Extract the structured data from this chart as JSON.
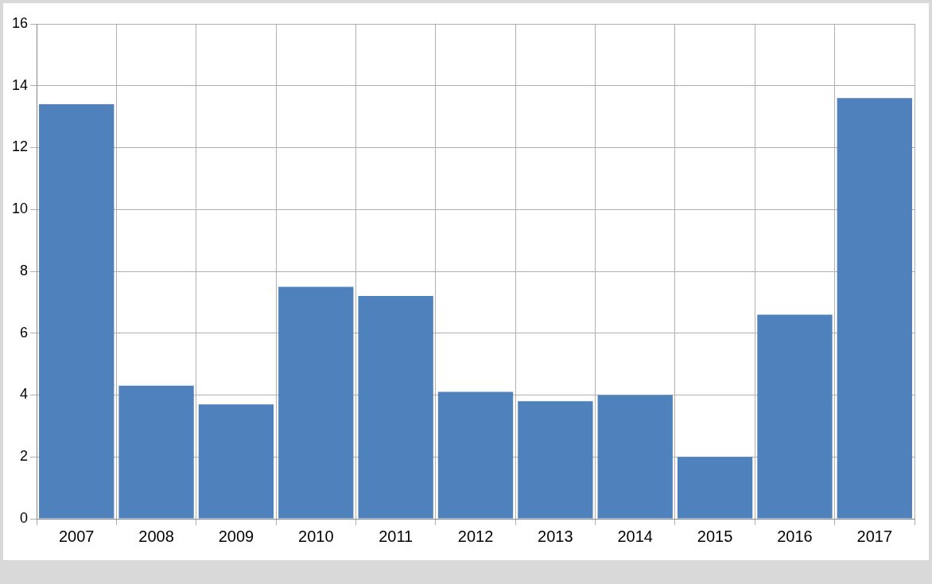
{
  "chart_data": {
    "type": "bar",
    "categories": [
      "2007",
      "2008",
      "2009",
      "2010",
      "2011",
      "2012",
      "2013",
      "2014",
      "2015",
      "2016",
      "2017"
    ],
    "values": [
      13.4,
      4.3,
      3.7,
      7.5,
      7.2,
      4.1,
      3.8,
      4.0,
      2.0,
      6.6,
      13.6
    ],
    "color": "#4f81bd",
    "ylim": [
      0,
      16
    ],
    "yticks": [
      0,
      2,
      4,
      6,
      8,
      10,
      12,
      14,
      16
    ],
    "grid": true,
    "legend": false
  }
}
